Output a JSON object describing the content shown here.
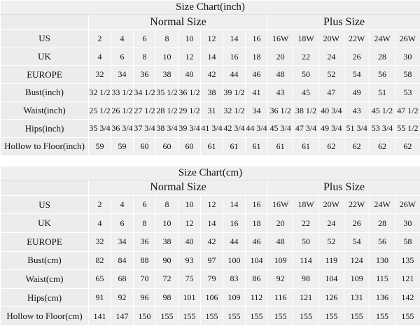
{
  "tables": [
    {
      "title": "Size Chart(inch)",
      "normal_header": "Normal Size",
      "plus_header": "Plus Size",
      "rows": [
        {
          "label": "US",
          "normal": [
            "2",
            "4",
            "6",
            "8",
            "10",
            "12",
            "14",
            "16"
          ],
          "plus": [
            "16W",
            "18W",
            "20W",
            "22W",
            "24W",
            "26W"
          ]
        },
        {
          "label": "UK",
          "normal": [
            "4",
            "6",
            "8",
            "10",
            "12",
            "14",
            "16",
            "18"
          ],
          "plus": [
            "20",
            "22",
            "24",
            "26",
            "28",
            "30"
          ]
        },
        {
          "label": "EUROPE",
          "normal": [
            "32",
            "34",
            "36",
            "38",
            "40",
            "42",
            "44",
            "46"
          ],
          "plus": [
            "48",
            "50",
            "52",
            "54",
            "56",
            "58"
          ]
        },
        {
          "label": "Bust(inch)",
          "normal": [
            "32 1/2",
            "33 1/2",
            "34 1/2",
            "35 1/2",
            "36 1/2",
            "38",
            "39 1/2",
            "41"
          ],
          "plus": [
            "43",
            "45",
            "47",
            "49",
            "51",
            "53"
          ]
        },
        {
          "label": "Waist(inch)",
          "normal": [
            "25 1/2",
            "26 1/2",
            "27 1/2",
            "28 1/2",
            "29 1/2",
            "31",
            "32 1/2",
            "34"
          ],
          "plus": [
            "36 1/2",
            "38 1/2",
            "40 3/4",
            "43",
            "45 1/2",
            "47 1/2"
          ]
        },
        {
          "label": "Hips(inch)",
          "normal": [
            "35 3/4",
            "36 3/4",
            "37 3/4",
            "38 3/4",
            "39 3/4",
            "41 3/4",
            "42 3/4",
            "44 3/4"
          ],
          "plus": [
            "45 3/4",
            "47 3/4",
            "49 3/4",
            "51 3/4",
            "53 3/4",
            "55 1/2"
          ]
        },
        {
          "label": "Hollow to Floor(inch)",
          "normal": [
            "59",
            "59",
            "60",
            "60",
            "60",
            "61",
            "61",
            "61"
          ],
          "plus": [
            "61",
            "61",
            "62",
            "62",
            "62",
            "62"
          ]
        }
      ]
    },
    {
      "title": "Size Chart(cm)",
      "normal_header": "Normal Size",
      "plus_header": "Plus Size",
      "rows": [
        {
          "label": "US",
          "normal": [
            "2",
            "4",
            "6",
            "8",
            "10",
            "12",
            "14",
            "16"
          ],
          "plus": [
            "16W",
            "18W",
            "20W",
            "22W",
            "24W",
            "26W"
          ]
        },
        {
          "label": "UK",
          "normal": [
            "4",
            "6",
            "8",
            "10",
            "12",
            "14",
            "16",
            "18"
          ],
          "plus": [
            "20",
            "22",
            "24",
            "26",
            "28",
            "30"
          ]
        },
        {
          "label": "EUROPE",
          "normal": [
            "32",
            "34",
            "36",
            "38",
            "40",
            "42",
            "44",
            "46"
          ],
          "plus": [
            "48",
            "50",
            "52",
            "54",
            "56",
            "58"
          ]
        },
        {
          "label": "Bust(cm)",
          "normal": [
            "82",
            "84",
            "88",
            "90",
            "93",
            "97",
            "100",
            "104"
          ],
          "plus": [
            "109",
            "114",
            "119",
            "124",
            "130",
            "135"
          ]
        },
        {
          "label": "Waist(cm)",
          "normal": [
            "65",
            "68",
            "70",
            "72",
            "75",
            "79",
            "83",
            "86"
          ],
          "plus": [
            "92",
            "98",
            "104",
            "109",
            "115",
            "121"
          ]
        },
        {
          "label": "Hips(cm)",
          "normal": [
            "91",
            "92",
            "96",
            "98",
            "101",
            "106",
            "109",
            "112"
          ],
          "plus": [
            "116",
            "121",
            "126",
            "131",
            "136",
            "142"
          ]
        },
        {
          "label": "Hollow to Floor(cm)",
          "normal": [
            "141",
            "147",
            "150",
            "155",
            "155",
            "155",
            "155",
            "155"
          ],
          "plus": [
            "155",
            "155",
            "155",
            "155",
            "155",
            "155"
          ]
        }
      ]
    }
  ]
}
